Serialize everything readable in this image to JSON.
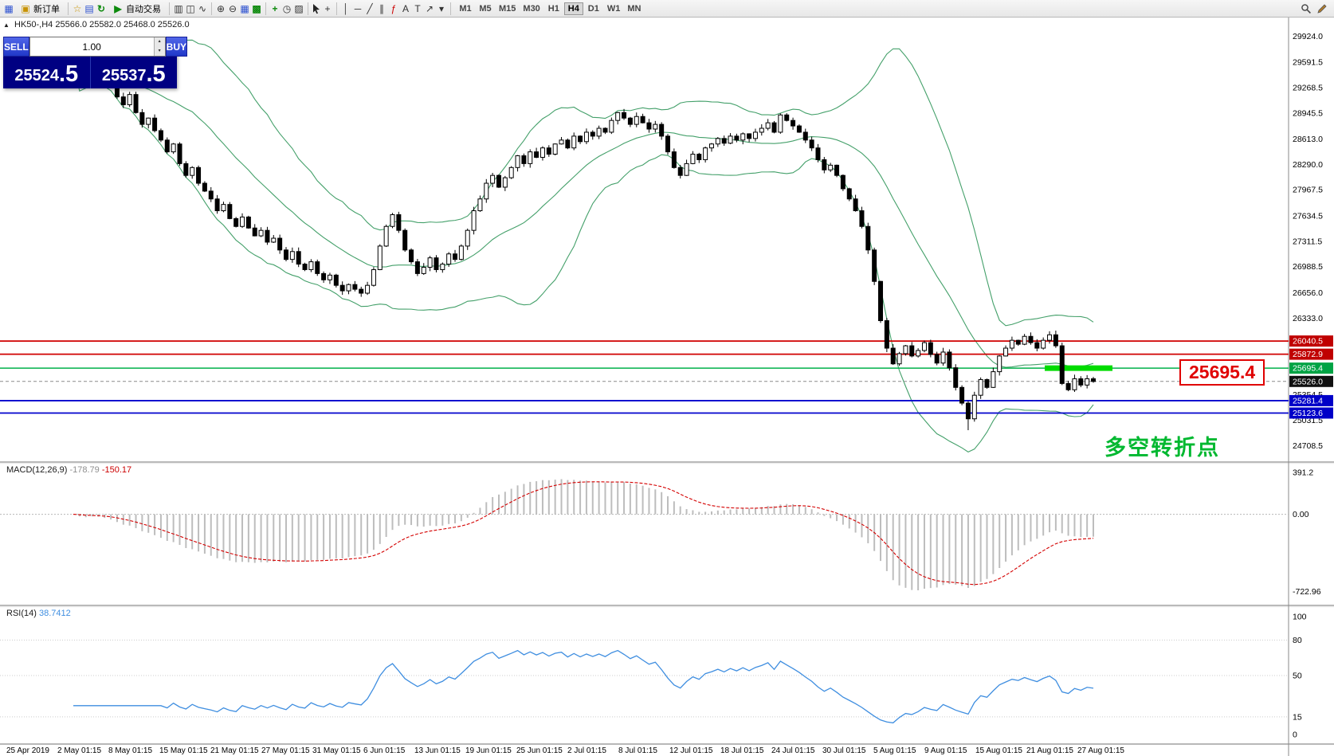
{
  "toolbar": {
    "new_order": "新订单",
    "auto_trading": "自动交易",
    "timeframes": [
      "M1",
      "M5",
      "M15",
      "M30",
      "H1",
      "H4",
      "D1",
      "W1",
      "MN"
    ],
    "active_timeframe": "H4",
    "icons": {
      "symbol-chart": "▦",
      "new-order": "▣",
      "favorites": "☆",
      "profiles": "▤",
      "refresh": "↻",
      "play": "▶",
      "bars": "▥",
      "candles": "◫",
      "line-chart": "∿",
      "zoom-in": "⊕",
      "zoom-out": "⊖",
      "tile-windows": "▦",
      "grid": "▩",
      "indicators": "+",
      "periods": "◷",
      "templates": "▨",
      "crosshair": "+",
      "vline": "│",
      "hline": "─",
      "trendline": "╱",
      "channel": "∥",
      "fibonacci": "ƒ",
      "text": "A",
      "label": "T",
      "arrows": "↗",
      "dropdown": "▾",
      "spin-up": "▴",
      "spin-down": "▾",
      "collapse": "▲"
    }
  },
  "one_click": {
    "sell": "SELL",
    "buy": "BUY",
    "volume": "1.00",
    "sell_big": "25524",
    "sell_frac": ".5",
    "buy_big": "25537",
    "buy_frac": ".5"
  },
  "headers": {
    "main": "HK50-,H4  25566.0 25582.0 25468.0 25526.0",
    "macd_name": "MACD(12,26,9)",
    "macd_main": "-178.79",
    "macd_signal": "-150.17",
    "rsi_name": "RSI(14)",
    "rsi_value": "38.7412"
  },
  "annotations": {
    "price_label": "25695.4",
    "turning_point": "多空转折点"
  },
  "chart_data": {
    "type": "candlestick",
    "symbol": "HK50-",
    "timeframe": "H4",
    "ohlc_display": {
      "open": "25566.0",
      "high": "25582.0",
      "low": "25468.0",
      "close": "25526.0"
    },
    "closes": [
      29600,
      29350,
      29450,
      29620,
      29500,
      29380,
      29300,
      29150,
      29050,
      29180,
      28950,
      28800,
      28880,
      28720,
      28600,
      28450,
      28550,
      28300,
      28150,
      28250,
      28050,
      27950,
      27850,
      27700,
      27780,
      27600,
      27500,
      27620,
      27480,
      27380,
      27450,
      27300,
      27350,
      27200,
      27080,
      27180,
      27020,
      26950,
      27050,
      26900,
      26820,
      26880,
      26750,
      26680,
      26760,
      26700,
      26650,
      26750,
      26950,
      27250,
      27500,
      27650,
      27450,
      27200,
      27050,
      26900,
      26980,
      27100,
      26950,
      27020,
      27150,
      27080,
      27250,
      27450,
      27700,
      27850,
      28050,
      28150,
      28000,
      28120,
      28250,
      28400,
      28300,
      28450,
      28380,
      28500,
      28420,
      28550,
      28600,
      28500,
      28650,
      28580,
      28700,
      28650,
      28750,
      28700,
      28850,
      28950,
      28880,
      28800,
      28900,
      28820,
      28740,
      28800,
      28650,
      28450,
      28250,
      28150,
      28300,
      28420,
      28350,
      28500,
      28550,
      28620,
      28560,
      28650,
      28600,
      28680,
      28620,
      28700,
      28750,
      28820,
      28700,
      28920,
      28850,
      28780,
      28700,
      28600,
      28500,
      28350,
      28220,
      28280,
      28150,
      27980,
      27850,
      27700,
      27500,
      27200,
      26800,
      26300,
      25950,
      25750,
      25880,
      25980,
      25850,
      25920,
      26020,
      25870,
      25760,
      25900,
      25700,
      25450,
      25250,
      25050,
      25350,
      25550,
      25450,
      25650,
      25850,
      25950,
      26050,
      26000,
      26100,
      26020,
      25950,
      26050,
      26120,
      25980,
      25500,
      25420,
      25560,
      25480,
      25560,
      25526
    ],
    "x_labels": [
      "25 Apr 2019",
      "2 May 01:15",
      "8 May 01:15",
      "15 May 01:15",
      "21 May 01:15",
      "27 May 01:15",
      "31 May 01:15",
      "6 Jun 01:15",
      "13 Jun 01:15",
      "19 Jun 01:15",
      "25 Jun 01:15",
      "2 Jul 01:15",
      "8 Jul 01:15",
      "12 Jul 01:15",
      "18 Jul 01:15",
      "24 Jul 01:15",
      "30 Jul 01:15",
      "5 Aug 01:15",
      "9 Aug 01:15",
      "15 Aug 01:15",
      "21 Aug 01:15",
      "27 Aug 01:15"
    ],
    "price_axis": {
      "range": [
        24708.5,
        29924.0
      ],
      "ticks": [
        29924.0,
        29591.5,
        29268.5,
        28945.5,
        28613.0,
        28290.0,
        27967.5,
        27634.5,
        27311.5,
        26988.5,
        26656.0,
        26333.0,
        25354.5,
        25031.5,
        24708.5
      ],
      "badges": [
        {
          "label": "26040.5",
          "price": 26040.5,
          "color": "#c00000"
        },
        {
          "label": "25872.9",
          "price": 25872.9,
          "color": "#c00000"
        },
        {
          "label": "25695.4",
          "price": 25695.4,
          "color": "#00a344"
        },
        {
          "label": "25526.0",
          "price": 25526.0,
          "color": "#111111"
        },
        {
          "label": "25281.4",
          "price": 25281.4,
          "color": "#0000c8"
        },
        {
          "label": "25123.6",
          "price": 25123.6,
          "color": "#0000c8"
        }
      ]
    },
    "hlines": [
      {
        "price": 26040.5,
        "color": "#d00000",
        "width": 1.8
      },
      {
        "price": 25872.9,
        "color": "#d00000",
        "width": 1.8
      },
      {
        "price": 25695.4,
        "color": "#00b14a",
        "width": 1.5
      },
      {
        "price": 25526.0,
        "color": "#8a8a8a",
        "width": 1,
        "dash": "4 3"
      },
      {
        "price": 25281.4,
        "color": "#0000cd",
        "width": 1.8
      },
      {
        "price": 25123.6,
        "color": "#0000cd",
        "width": 1.8
      }
    ],
    "highlight_segment": {
      "price": 25695.4,
      "color": "#00dc00",
      "width": 7
    },
    "bollinger": {
      "period": 20,
      "deviation": 2,
      "color": "#44a06a"
    },
    "macd": {
      "params": "12,26,9",
      "main": -178.79,
      "signal": -150.17,
      "range": [
        -722.96,
        391.2
      ],
      "scale_values": [
        391.2,
        0,
        -722.96
      ],
      "scale_labels": [
        "391.2",
        "0.00",
        "-722.96"
      ],
      "hist_color": "#bdbdbd",
      "signal_color": "#d40000"
    },
    "rsi": {
      "period": 14,
      "value": 38.7412,
      "range": [
        0,
        100
      ],
      "scale_labels": [
        100,
        80,
        50,
        15,
        0
      ],
      "levels": [
        80,
        50,
        15
      ],
      "color": "#3f8ee0"
    }
  }
}
